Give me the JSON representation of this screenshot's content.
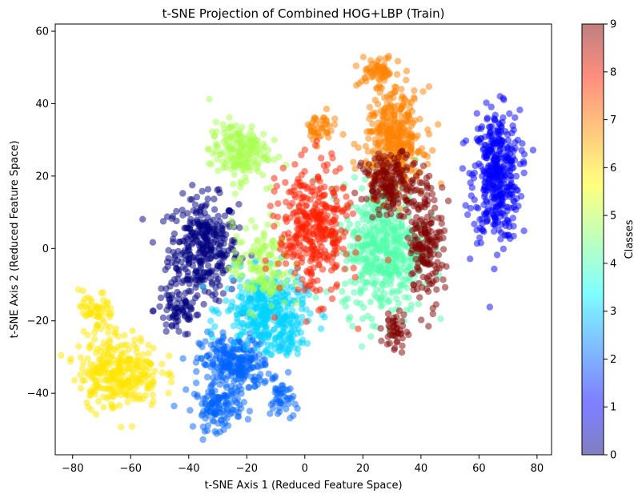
{
  "chart_data": {
    "type": "scatter",
    "title": "t-SNE Projection of Combined HOG+LBP (Train)",
    "xlabel": "t-SNE Axis 1 (Reduced Feature Space)",
    "ylabel": "t-SNE Axis 2 (Reduced Feature Space)",
    "xlim": [
      -86,
      85
    ],
    "ylim": [
      -57,
      62
    ],
    "xticks": [
      -80,
      -60,
      -40,
      -20,
      0,
      20,
      40,
      60,
      80
    ],
    "yticks": [
      -40,
      -20,
      0,
      20,
      40,
      60
    ],
    "grid": false,
    "point_alpha": 0.5,
    "colorbar": {
      "label": "Classes",
      "range": [
        0,
        9
      ],
      "ticks": [
        0,
        1,
        2,
        3,
        4,
        5,
        6,
        7,
        8,
        9
      ],
      "colormap": "jet"
    },
    "clusters": [
      {
        "class": 0,
        "color": "#000080",
        "center": [
          -35,
          0
        ],
        "spread": [
          6,
          7
        ],
        "points": 340
      },
      {
        "class": 0,
        "color": "#000080",
        "center": [
          -44,
          -17
        ],
        "spread": [
          4,
          4
        ],
        "points": 70
      },
      {
        "class": 1,
        "color": "#0000ff",
        "center": [
          66,
          20
        ],
        "spread": [
          4,
          9
        ],
        "points": 400
      },
      {
        "class": 2,
        "color": "#0063ff",
        "center": [
          -24,
          -32
        ],
        "spread": [
          6,
          4
        ],
        "points": 260
      },
      {
        "class": 2,
        "color": "#0063ff",
        "center": [
          -30,
          -44
        ],
        "spread": [
          4,
          3
        ],
        "points": 110
      },
      {
        "class": 2,
        "color": "#0063ff",
        "center": [
          -8,
          -42
        ],
        "spread": [
          2,
          3
        ],
        "points": 45
      },
      {
        "class": 3,
        "color": "#00d4ff",
        "center": [
          -14,
          -17
        ],
        "spread": [
          7,
          5
        ],
        "points": 320
      },
      {
        "class": 3,
        "color": "#00d4ff",
        "center": [
          -7,
          -25
        ],
        "spread": [
          3,
          3
        ],
        "points": 60
      },
      {
        "class": 4,
        "color": "#4effa9",
        "center": [
          27,
          0
        ],
        "spread": [
          7,
          9
        ],
        "points": 460
      },
      {
        "class": 5,
        "color": "#a8ff4e",
        "center": [
          -23,
          27
        ],
        "spread": [
          5,
          4
        ],
        "points": 180
      },
      {
        "class": 5,
        "color": "#a8ff4e",
        "center": [
          -15,
          -5
        ],
        "spread": [
          5,
          6
        ],
        "points": 130
      },
      {
        "class": 6,
        "color": "#ffe600",
        "center": [
          -64,
          -34
        ],
        "spread": [
          7,
          5
        ],
        "points": 300
      },
      {
        "class": 6,
        "color": "#ffe600",
        "center": [
          -72,
          -18
        ],
        "spread": [
          3,
          3
        ],
        "points": 60
      },
      {
        "class": 7,
        "color": "#ff8200",
        "center": [
          31,
          30
        ],
        "spread": [
          5,
          7
        ],
        "points": 360
      },
      {
        "class": 7,
        "color": "#ff8200",
        "center": [
          25,
          49
        ],
        "spread": [
          3,
          2
        ],
        "points": 60
      },
      {
        "class": 7,
        "color": "#ff8200",
        "center": [
          5,
          33
        ],
        "spread": [
          3,
          2
        ],
        "points": 45
      },
      {
        "class": 8,
        "color": "#ff1e00",
        "center": [
          3,
          5
        ],
        "spread": [
          6,
          9
        ],
        "points": 360
      },
      {
        "class": 9,
        "color": "#800000",
        "center": [
          30,
          18
        ],
        "spread": [
          5,
          4
        ],
        "points": 180
      },
      {
        "class": 9,
        "color": "#800000",
        "center": [
          42,
          2
        ],
        "spread": [
          3,
          8
        ],
        "points": 170
      },
      {
        "class": 9,
        "color": "#800000",
        "center": [
          31,
          -23
        ],
        "spread": [
          2,
          3
        ],
        "points": 45
      }
    ]
  }
}
